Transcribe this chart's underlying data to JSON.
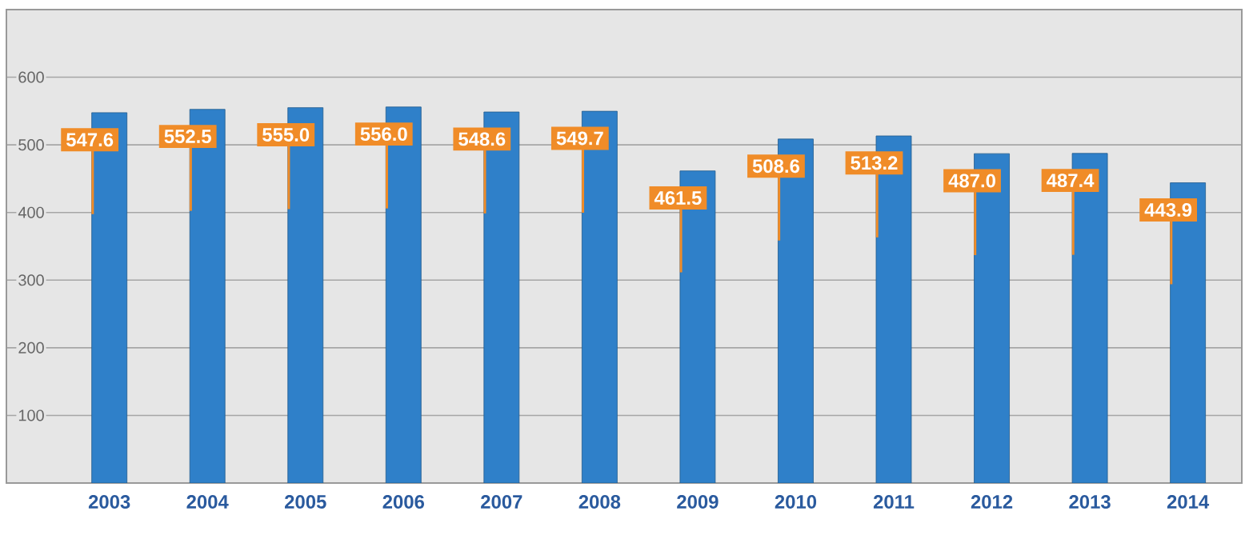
{
  "chart_data": {
    "type": "bar",
    "categories": [
      "2003",
      "2004",
      "2005",
      "2006",
      "2007",
      "2008",
      "2009",
      "2010",
      "2011",
      "2012",
      "2013",
      "2014"
    ],
    "values": [
      547.6,
      552.5,
      555.0,
      556.0,
      548.6,
      549.7,
      461.5,
      508.6,
      513.2,
      487.0,
      487.4,
      443.9
    ],
    "value_labels": [
      "547.6",
      "552.5",
      "555.0",
      "556.0",
      "548.6",
      "549.7",
      "461.5",
      "508.6",
      "513.2",
      "487.0",
      "487.4",
      "443.9"
    ],
    "color": "#2f80c9",
    "ylim": [
      0,
      700
    ],
    "yticks": [
      100,
      200,
      300,
      400,
      500,
      600
    ],
    "grid": "y"
  }
}
